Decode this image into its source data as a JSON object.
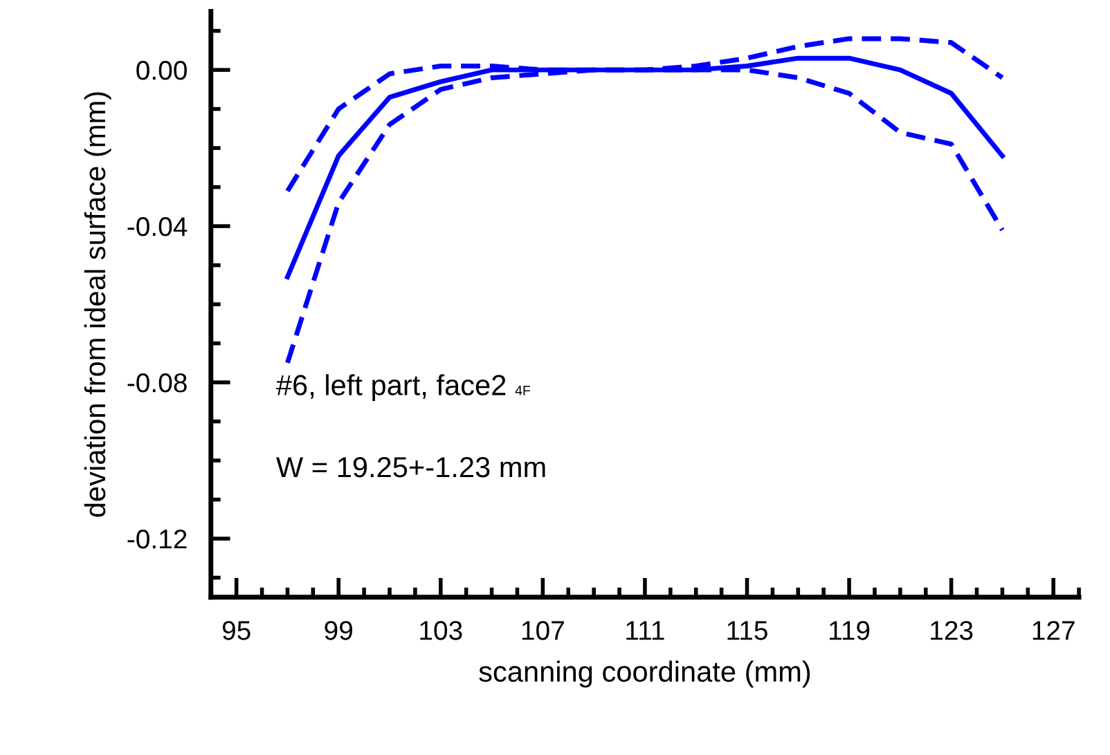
{
  "chart_data": {
    "type": "line",
    "xlabel": "scanning coordinate (mm)",
    "ylabel": "deviation from ideal surface (mm)",
    "annotations": [
      "#6, left part, face2",
      "4F",
      "W = 19.25+-1.23 mm"
    ],
    "x": [
      97,
      99,
      101,
      103,
      105,
      107,
      109,
      111,
      113,
      115,
      117,
      119,
      121,
      123,
      125
    ],
    "series": [
      {
        "color": "#0000ff",
        "line_style": "solid",
        "values": [
          -0.053,
          -0.022,
          -0.007,
          -0.003,
          0.0,
          0.0,
          0.0,
          0.0,
          0.0,
          0.001,
          0.003,
          0.003,
          0.0,
          -0.006,
          -0.022
        ]
      },
      {
        "color": "#0000ff",
        "line_style": "dashed",
        "values": [
          -0.031,
          -0.01,
          -0.001,
          0.001,
          0.001,
          0.0,
          0.0,
          0.0,
          0.001,
          0.003,
          0.006,
          0.008,
          0.008,
          0.007,
          -0.002
        ]
      },
      {
        "color": "#0000ff",
        "line_style": "dashed",
        "values": [
          -0.075,
          -0.034,
          -0.014,
          -0.005,
          -0.002,
          -0.001,
          0.0,
          0.0,
          0.0,
          0.0,
          -0.002,
          -0.006,
          -0.016,
          -0.019,
          -0.041
        ]
      }
    ],
    "xlim": [
      94,
      128
    ],
    "ylim": [
      -0.135,
      0.015
    ],
    "xticks": [
      95,
      {
        "value": 96,
        "label": null
      },
      {
        "value": 97,
        "label": null
      },
      {
        "value": 98,
        "label": null
      },
      99,
      {
        "value": 100,
        "label": null
      },
      {
        "value": 101,
        "label": null
      },
      {
        "value": 102,
        "label": null
      },
      103,
      {
        "value": 104,
        "label": null
      },
      {
        "value": 105,
        "label": null
      },
      {
        "value": 106,
        "label": null
      },
      107,
      {
        "value": 108,
        "label": null
      },
      {
        "value": 109,
        "label": null
      },
      {
        "value": 110,
        "label": null
      },
      111,
      {
        "value": 112,
        "label": null
      },
      {
        "value": 113,
        "label": null
      },
      {
        "value": 114,
        "label": null
      },
      115,
      {
        "value": 116,
        "label": null
      },
      {
        "value": 117,
        "label": null
      },
      {
        "value": 118,
        "label": null
      },
      119,
      {
        "value": 120,
        "label": null
      },
      {
        "value": 121,
        "label": null
      },
      {
        "value": 122,
        "label": null
      },
      123,
      {
        "value": 124,
        "label": null
      },
      {
        "value": 125,
        "label": null
      },
      {
        "value": 126,
        "label": null
      },
      127,
      {
        "value": 128,
        "label": null
      }
    ],
    "yticks": [
      {
        "value": 0.01,
        "label": null
      },
      {
        "value": 0.0,
        "label": "0.00"
      },
      {
        "value": -0.01,
        "label": null
      },
      {
        "value": -0.02,
        "label": null
      },
      {
        "value": -0.03,
        "label": null
      },
      {
        "value": -0.04,
        "label": "-0.04"
      },
      {
        "value": -0.05,
        "label": null
      },
      {
        "value": -0.06,
        "label": null
      },
      {
        "value": -0.07,
        "label": null
      },
      {
        "value": -0.08,
        "label": "-0.08"
      },
      {
        "value": -0.09,
        "label": null
      },
      {
        "value": -0.1,
        "label": null
      },
      {
        "value": -0.11,
        "label": null
      },
      {
        "value": -0.12,
        "label": "-0.12"
      },
      {
        "value": -0.13,
        "label": null
      }
    ],
    "marker": "none"
  }
}
